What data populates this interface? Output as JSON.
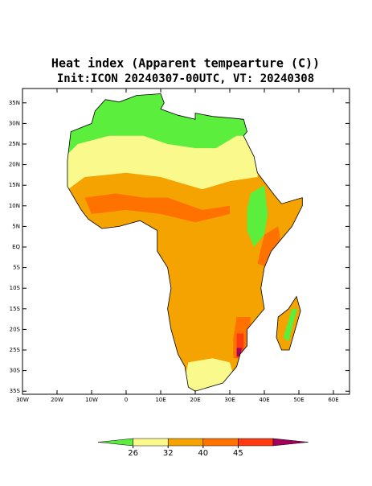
{
  "title": "Heat index (Apparent tempearture (C))",
  "subtitle": "Init:ICON 20240307-00UTC, VT: 20240308",
  "map": {
    "lat_ticks": [
      {
        "value": 35,
        "label": "35N"
      },
      {
        "value": 30,
        "label": "30N"
      },
      {
        "value": 25,
        "label": "25N"
      },
      {
        "value": 20,
        "label": "20N"
      },
      {
        "value": 15,
        "label": "15N"
      },
      {
        "value": 10,
        "label": "10N"
      },
      {
        "value": 5,
        "label": "5N"
      },
      {
        "value": 0,
        "label": "EQ"
      },
      {
        "value": -5,
        "label": "5S"
      },
      {
        "value": -10,
        "label": "10S"
      },
      {
        "value": -15,
        "label": "15S"
      },
      {
        "value": -20,
        "label": "20S"
      },
      {
        "value": -25,
        "label": "25S"
      },
      {
        "value": -30,
        "label": "30S"
      },
      {
        "value": -35,
        "label": "35S"
      }
    ],
    "lon_ticks": [
      {
        "value": -30,
        "label": "30W"
      },
      {
        "value": -20,
        "label": "20W"
      },
      {
        "value": -10,
        "label": "10W"
      },
      0,
      {
        "value": 10,
        "label": "10E"
      },
      {
        "value": 20,
        "label": "20E"
      },
      {
        "value": 30,
        "label": "30E"
      },
      {
        "value": 40,
        "label": "40E"
      },
      {
        "value": 50,
        "label": "50E"
      },
      {
        "value": 60,
        "label": "60E"
      }
    ]
  },
  "colorbar": {
    "ticks": [
      26,
      32,
      40,
      45
    ],
    "colors": [
      "#5cee3c",
      "#fafa8c",
      "#f5a300",
      "#ff7200",
      "#ff3a10",
      "#a4005a"
    ]
  }
}
